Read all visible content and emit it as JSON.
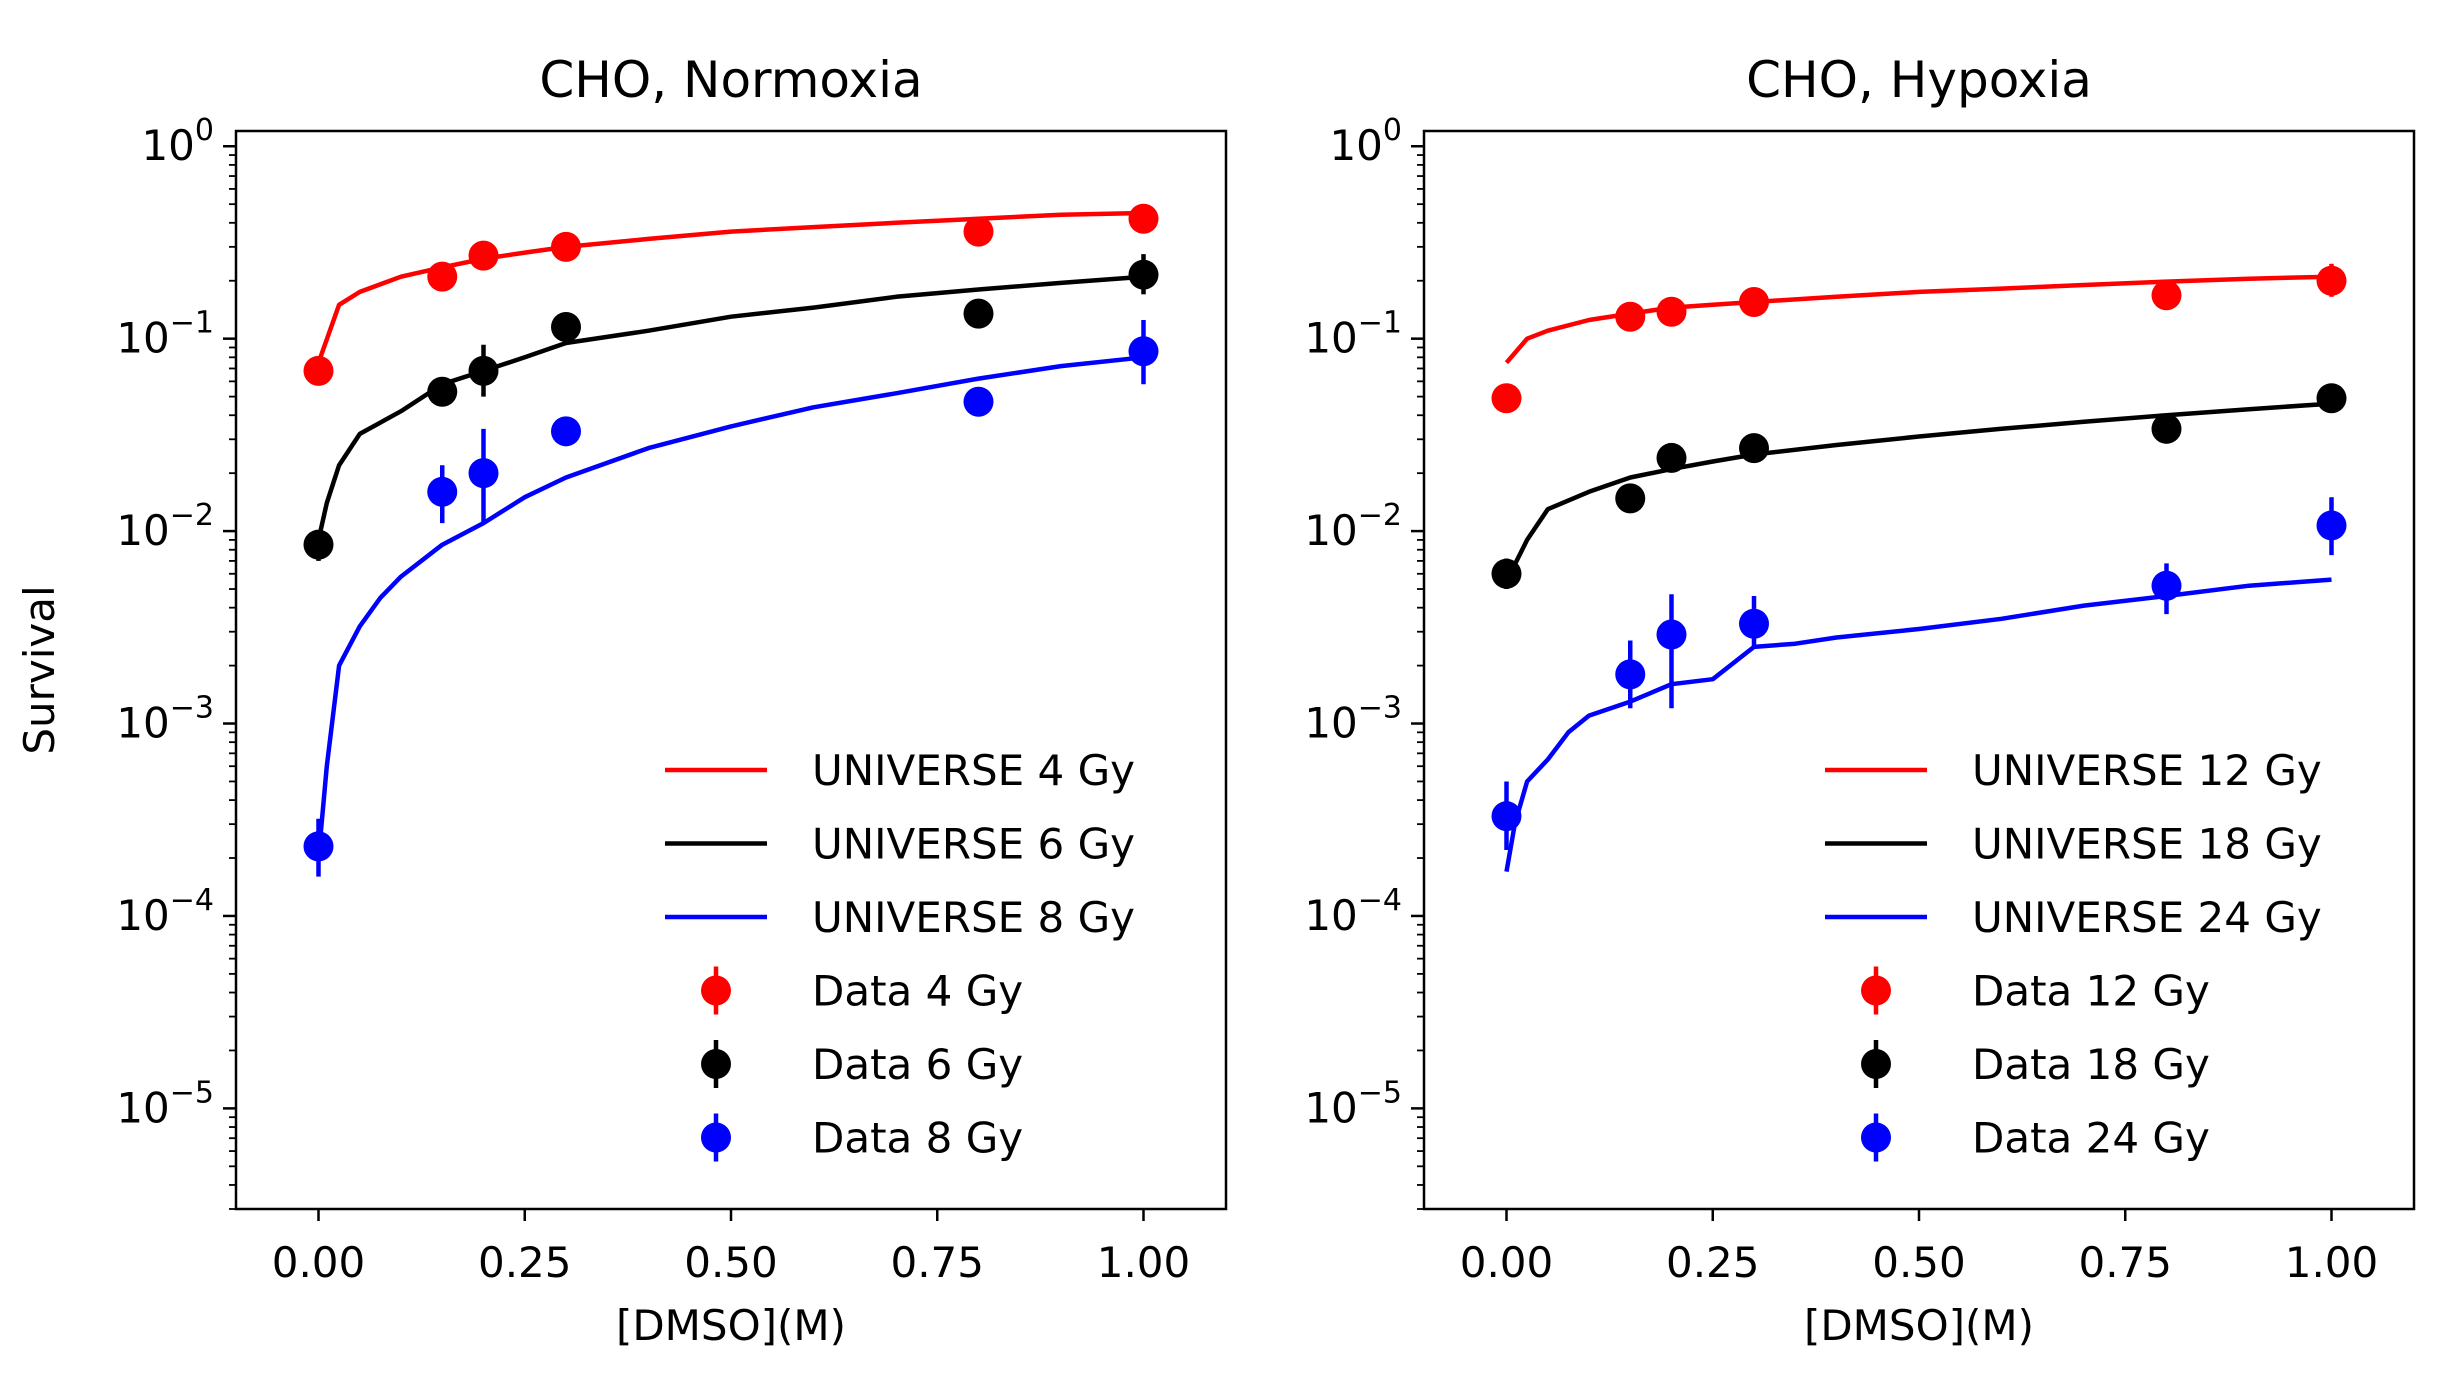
{
  "chart_data": [
    {
      "type": "scatter",
      "title": "CHO, Normoxia",
      "xlabel": "[DMSO](M)",
      "ylabel": "Survival",
      "xlim": [
        -0.1,
        1.1
      ],
      "ylim": [
        3e-06,
        1.2
      ],
      "yscale": "log",
      "x_ticks": [
        0.0,
        0.25,
        0.5,
        0.75,
        1.0
      ],
      "x_tick_labels": [
        "0.00",
        "0.25",
        "0.50",
        "0.75",
        "1.00"
      ],
      "y_ticks": [
        {
          "value": 1,
          "base": "10",
          "exp": "0"
        },
        {
          "value": 0.1,
          "base": "10",
          "exp": "−1"
        },
        {
          "value": 0.01,
          "base": "10",
          "exp": "−2"
        },
        {
          "value": 0.001,
          "base": "10",
          "exp": "−3"
        },
        {
          "value": 0.0001,
          "base": "10",
          "exp": "−4"
        },
        {
          "value": 1e-05,
          "base": "10",
          "exp": "−5"
        }
      ],
      "legend_position": "lower-right",
      "series": [
        {
          "name": "UNIVERSE 4 Gy",
          "kind": "line",
          "color": "#ff0000",
          "x": [
            0,
            0.025,
            0.05,
            0.1,
            0.15,
            0.2,
            0.25,
            0.3,
            0.4,
            0.5,
            0.6,
            0.7,
            0.8,
            0.9,
            1.0
          ],
          "y": [
            0.075,
            0.15,
            0.175,
            0.21,
            0.235,
            0.26,
            0.28,
            0.3,
            0.33,
            0.36,
            0.38,
            0.4,
            0.42,
            0.44,
            0.45
          ]
        },
        {
          "name": "UNIVERSE 6 Gy",
          "kind": "line",
          "color": "#000000",
          "x": [
            0,
            0.01,
            0.025,
            0.05,
            0.1,
            0.15,
            0.2,
            0.25,
            0.3,
            0.4,
            0.5,
            0.6,
            0.7,
            0.8,
            0.9,
            1.0
          ],
          "y": [
            0.009,
            0.014,
            0.022,
            0.032,
            0.042,
            0.058,
            0.068,
            0.08,
            0.095,
            0.11,
            0.13,
            0.145,
            0.165,
            0.18,
            0.195,
            0.21
          ]
        },
        {
          "name": "UNIVERSE 8 Gy",
          "kind": "line",
          "color": "#0000ff",
          "x": [
            0,
            0.01,
            0.025,
            0.05,
            0.075,
            0.1,
            0.15,
            0.2,
            0.25,
            0.3,
            0.4,
            0.5,
            0.6,
            0.7,
            0.8,
            0.9,
            1.0
          ],
          "y": [
            0.0002,
            0.0006,
            0.002,
            0.0032,
            0.0045,
            0.0058,
            0.0085,
            0.011,
            0.015,
            0.019,
            0.027,
            0.035,
            0.044,
            0.052,
            0.062,
            0.072,
            0.08
          ]
        },
        {
          "name": "Data 4 Gy",
          "kind": "points",
          "color": "#ff0000",
          "x": [
            0,
            0.15,
            0.2,
            0.3,
            0.8,
            1.0
          ],
          "y": [
            0.068,
            0.21,
            0.27,
            0.3,
            0.36,
            0.42
          ],
          "err_low": [
            0.063,
            0.19,
            0.245,
            0.28,
            0.33,
            0.39
          ],
          "err_high": [
            0.074,
            0.23,
            0.3,
            0.33,
            0.39,
            0.45
          ]
        },
        {
          "name": "Data 6 Gy",
          "kind": "points",
          "color": "#000000",
          "x": [
            0,
            0.15,
            0.2,
            0.3,
            0.8,
            1.0
          ],
          "y": [
            0.0085,
            0.053,
            0.068,
            0.115,
            0.135,
            0.215
          ],
          "err_low": [
            0.007,
            0.047,
            0.05,
            0.104,
            0.122,
            0.17
          ],
          "err_high": [
            0.01,
            0.06,
            0.093,
            0.127,
            0.15,
            0.275
          ]
        },
        {
          "name": "Data 8 Gy",
          "kind": "points",
          "color": "#0000ff",
          "x": [
            0,
            0.15,
            0.2,
            0.3,
            0.8,
            1.0
          ],
          "y": [
            0.00023,
            0.016,
            0.02,
            0.033,
            0.047,
            0.086
          ],
          "err_low": [
            0.00016,
            0.011,
            0.011,
            0.029,
            0.042,
            0.058
          ],
          "err_high": [
            0.00032,
            0.022,
            0.034,
            0.037,
            0.052,
            0.125
          ]
        }
      ]
    },
    {
      "type": "scatter",
      "title": "CHO, Hypoxia",
      "xlabel": "[DMSO](M)",
      "ylabel": "",
      "xlim": [
        -0.1,
        1.1
      ],
      "ylim": [
        3e-06,
        1.2
      ],
      "yscale": "log",
      "x_ticks": [
        0.0,
        0.25,
        0.5,
        0.75,
        1.0
      ],
      "x_tick_labels": [
        "0.00",
        "0.25",
        "0.50",
        "0.75",
        "1.00"
      ],
      "y_ticks": [
        {
          "value": 1,
          "base": "10",
          "exp": "0"
        },
        {
          "value": 0.1,
          "base": "10",
          "exp": "−1"
        },
        {
          "value": 0.01,
          "base": "10",
          "exp": "−2"
        },
        {
          "value": 0.001,
          "base": "10",
          "exp": "−3"
        },
        {
          "value": 0.0001,
          "base": "10",
          "exp": "−4"
        },
        {
          "value": 1e-05,
          "base": "10",
          "exp": "−5"
        }
      ],
      "legend_position": "lower-right",
      "series": [
        {
          "name": "UNIVERSE 12 Gy",
          "kind": "line",
          "color": "#ff0000",
          "x": [
            0,
            0.025,
            0.05,
            0.1,
            0.15,
            0.2,
            0.25,
            0.3,
            0.4,
            0.5,
            0.6,
            0.7,
            0.8,
            0.9,
            1.0
          ],
          "y": [
            0.075,
            0.1,
            0.11,
            0.125,
            0.135,
            0.145,
            0.15,
            0.155,
            0.165,
            0.175,
            0.182,
            0.19,
            0.198,
            0.205,
            0.21
          ]
        },
        {
          "name": "UNIVERSE 18 Gy",
          "kind": "line",
          "color": "#000000",
          "x": [
            0,
            0.025,
            0.05,
            0.1,
            0.15,
            0.2,
            0.25,
            0.3,
            0.4,
            0.5,
            0.6,
            0.7,
            0.8,
            0.9,
            1.0
          ],
          "y": [
            0.0055,
            0.009,
            0.013,
            0.016,
            0.019,
            0.021,
            0.023,
            0.025,
            0.028,
            0.031,
            0.034,
            0.037,
            0.04,
            0.043,
            0.046
          ]
        },
        {
          "name": "UNIVERSE 24 Gy",
          "kind": "line",
          "color": "#0000ff",
          "x": [
            0,
            0.01,
            0.025,
            0.05,
            0.075,
            0.1,
            0.15,
            0.2,
            0.25,
            0.3,
            0.35,
            0.4,
            0.5,
            0.6,
            0.7,
            0.8,
            0.9,
            1.0
          ],
          "y": [
            0.00017,
            0.0003,
            0.0005,
            0.00065,
            0.0009,
            0.0011,
            0.0013,
            0.0016,
            0.0017,
            0.0025,
            0.0026,
            0.0028,
            0.0031,
            0.0035,
            0.0041,
            0.0046,
            0.0052,
            0.0056
          ]
        },
        {
          "name": "Data 12 Gy",
          "kind": "points",
          "color": "#ff0000",
          "x": [
            0,
            0.15,
            0.2,
            0.3,
            0.8,
            1.0
          ],
          "y": [
            0.049,
            0.13,
            0.138,
            0.155,
            0.168,
            0.2
          ],
          "err_low": [
            0.045,
            0.12,
            0.128,
            0.145,
            0.158,
            0.165
          ],
          "err_high": [
            0.053,
            0.14,
            0.148,
            0.165,
            0.18,
            0.245
          ]
        },
        {
          "name": "Data 18 Gy",
          "kind": "points",
          "color": "#000000",
          "x": [
            0,
            0.15,
            0.2,
            0.3,
            0.8,
            1.0
          ],
          "y": [
            0.006,
            0.0148,
            0.024,
            0.027,
            0.034,
            0.049
          ],
          "err_low": [
            0.005,
            0.013,
            0.021,
            0.024,
            0.031,
            0.044
          ],
          "err_high": [
            0.0072,
            0.0168,
            0.027,
            0.03,
            0.037,
            0.054
          ]
        },
        {
          "name": "Data 24 Gy",
          "kind": "points",
          "color": "#0000ff",
          "x": [
            0,
            0.15,
            0.2,
            0.3,
            0.8,
            1.0
          ],
          "y": [
            0.00033,
            0.0018,
            0.0029,
            0.0033,
            0.0052,
            0.0107
          ],
          "err_low": [
            0.00022,
            0.0012,
            0.0012,
            0.0025,
            0.0037,
            0.0075
          ],
          "err_high": [
            0.0005,
            0.0027,
            0.0047,
            0.0046,
            0.0068,
            0.015
          ]
        }
      ]
    }
  ]
}
